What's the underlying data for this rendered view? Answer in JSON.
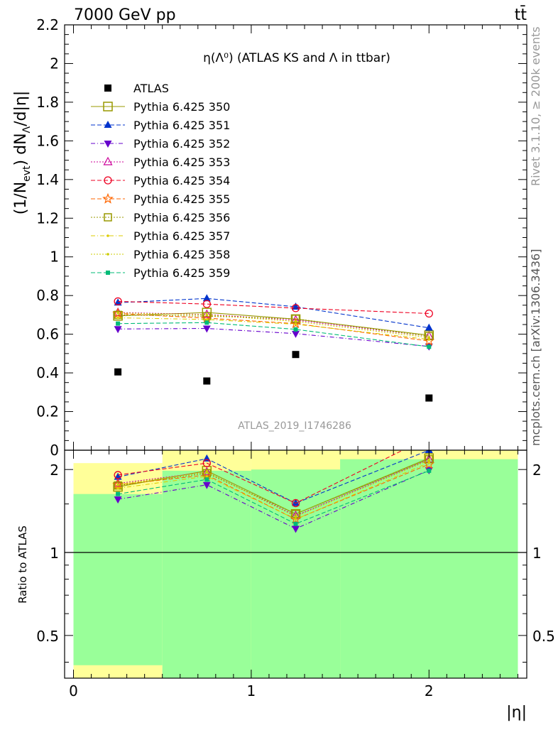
{
  "header": {
    "left": "7000 GeV pp",
    "right": "tt̄"
  },
  "side_labels": {
    "rivet": "Rivet 3.1.10, ≥ 200k events",
    "mcplots": "mcplots.cern.ch [arXiv:1306.3436]"
  },
  "plot_title": "η(Λ⁰) (ATLAS KS and Λ in ttbar)",
  "analysis_label": "ATLAS_2019_I1746286",
  "colors": {
    "data": "#000000",
    "band_inner": "#99ff99",
    "band_outer": "#ffff99",
    "axis": "#000000",
    "watermark": "#999999"
  },
  "chart_data": [
    {
      "type": "scatter",
      "panel": "main",
      "ylabel": "(1/N_evt) dN_Λ/d|η|",
      "ylim": [
        0,
        2.2
      ],
      "yticks": [
        "0",
        "0.2",
        "0.4",
        "0.6",
        "0.8",
        "1",
        "1.2",
        "1.4",
        "1.6",
        "1.8",
        "2",
        "2.2"
      ],
      "x": [
        0.25,
        0.75,
        1.25,
        2.0
      ],
      "series": [
        {
          "name": "ATLAS",
          "color": "#000000",
          "marker": "filled-square",
          "dash": "none",
          "values": [
            0.405,
            0.358,
            0.495,
            0.27
          ]
        },
        {
          "name": "Pythia 6.425 350",
          "color": "#999900",
          "marker": "open-square-large",
          "dash": "solid",
          "values": [
            0.695,
            0.712,
            0.678,
            0.595
          ]
        },
        {
          "name": "Pythia 6.425 351",
          "color": "#0033cc",
          "marker": "filled-triangle",
          "dash": "dashed",
          "values": [
            0.763,
            0.785,
            0.742,
            0.633
          ]
        },
        {
          "name": "Pythia 6.425 352",
          "color": "#6600cc",
          "marker": "filled-triangle-down",
          "dash": "dashdot",
          "values": [
            0.627,
            0.63,
            0.603,
            0.537
          ]
        },
        {
          "name": "Pythia 6.425 353",
          "color": "#cc0099",
          "marker": "open-triangle",
          "dash": "dotted",
          "values": [
            0.712,
            0.702,
            0.673,
            0.59
          ]
        },
        {
          "name": "Pythia 6.425 354",
          "color": "#ee0022",
          "marker": "open-circle",
          "dash": "dashed",
          "values": [
            0.77,
            0.756,
            0.735,
            0.707
          ]
        },
        {
          "name": "Pythia 6.425 355",
          "color": "#ff6600",
          "marker": "open-star",
          "dash": "dashed",
          "values": [
            0.707,
            0.683,
            0.655,
            0.565
          ]
        },
        {
          "name": "Pythia 6.425 356",
          "color": "#999900",
          "marker": "open-square",
          "dash": "dotted",
          "values": [
            0.7,
            0.693,
            0.68,
            0.59
          ]
        },
        {
          "name": "Pythia 6.425 357",
          "color": "#ddcc00",
          "marker": "small-dot",
          "dash": "dashdot",
          "values": [
            0.685,
            0.676,
            0.652,
            0.573
          ]
        },
        {
          "name": "Pythia 6.425 358",
          "color": "#cccc00",
          "marker": "small-dot",
          "dash": "dotted",
          "values": [
            0.71,
            0.7,
            0.666,
            0.583
          ]
        },
        {
          "name": "Pythia 6.425 359",
          "color": "#00bb77",
          "marker": "filled-square-small",
          "dash": "dashed",
          "values": [
            0.655,
            0.66,
            0.625,
            0.535
          ]
        }
      ]
    },
    {
      "type": "line",
      "panel": "ratio",
      "ylabel": "Ratio to ATLAS",
      "xlabel": "|η|",
      "scale": "log",
      "ylim": [
        0.35,
        2.35
      ],
      "yticks": [
        "0.5",
        "1",
        "2"
      ],
      "xticks": [
        "0",
        "1",
        "2"
      ],
      "xlim": [
        -0.05,
        2.55
      ],
      "reference": 1,
      "bands": {
        "bins": [
          [
            0,
            0.5
          ],
          [
            0.5,
            1.0
          ],
          [
            1.0,
            1.5
          ],
          [
            1.5,
            2.5
          ]
        ],
        "inner": [
          [
            0.39,
            1.63
          ],
          [
            0.35,
            1.98
          ],
          [
            0.35,
            2.0
          ],
          [
            0.35,
            2.18
          ]
        ],
        "outer": [
          [
            0.35,
            2.11
          ],
          [
            0.35,
            2.35
          ],
          [
            0.35,
            2.35
          ],
          [
            0.35,
            2.35
          ]
        ]
      },
      "x": [
        0.25,
        0.75,
        1.25,
        2.0
      ],
      "series": [
        {
          "name": "Pythia 6.425 350",
          "values": [
            1.73,
            1.98,
            1.38,
            2.2
          ]
        },
        {
          "name": "Pythia 6.425 351",
          "values": [
            1.88,
            2.19,
            1.51,
            2.35
          ]
        },
        {
          "name": "Pythia 6.425 352",
          "values": [
            1.56,
            1.76,
            1.22,
            1.99
          ]
        },
        {
          "name": "Pythia 6.425 353",
          "values": [
            1.78,
            1.96,
            1.36,
            2.18
          ]
        },
        {
          "name": "Pythia 6.425 354",
          "values": [
            1.91,
            2.11,
            1.51,
            2.62
          ]
        },
        {
          "name": "Pythia 6.425 355",
          "values": [
            1.76,
            1.91,
            1.32,
            2.09
          ]
        },
        {
          "name": "Pythia 6.425 356",
          "values": [
            1.75,
            1.94,
            1.38,
            2.18
          ]
        },
        {
          "name": "Pythia 6.425 357",
          "values": [
            1.71,
            1.89,
            1.32,
            2.12
          ]
        },
        {
          "name": "Pythia 6.425 358",
          "values": [
            1.76,
            1.96,
            1.35,
            2.16
          ]
        },
        {
          "name": "Pythia 6.425 359",
          "values": [
            1.63,
            1.84,
            1.27,
            1.98
          ]
        }
      ]
    }
  ]
}
